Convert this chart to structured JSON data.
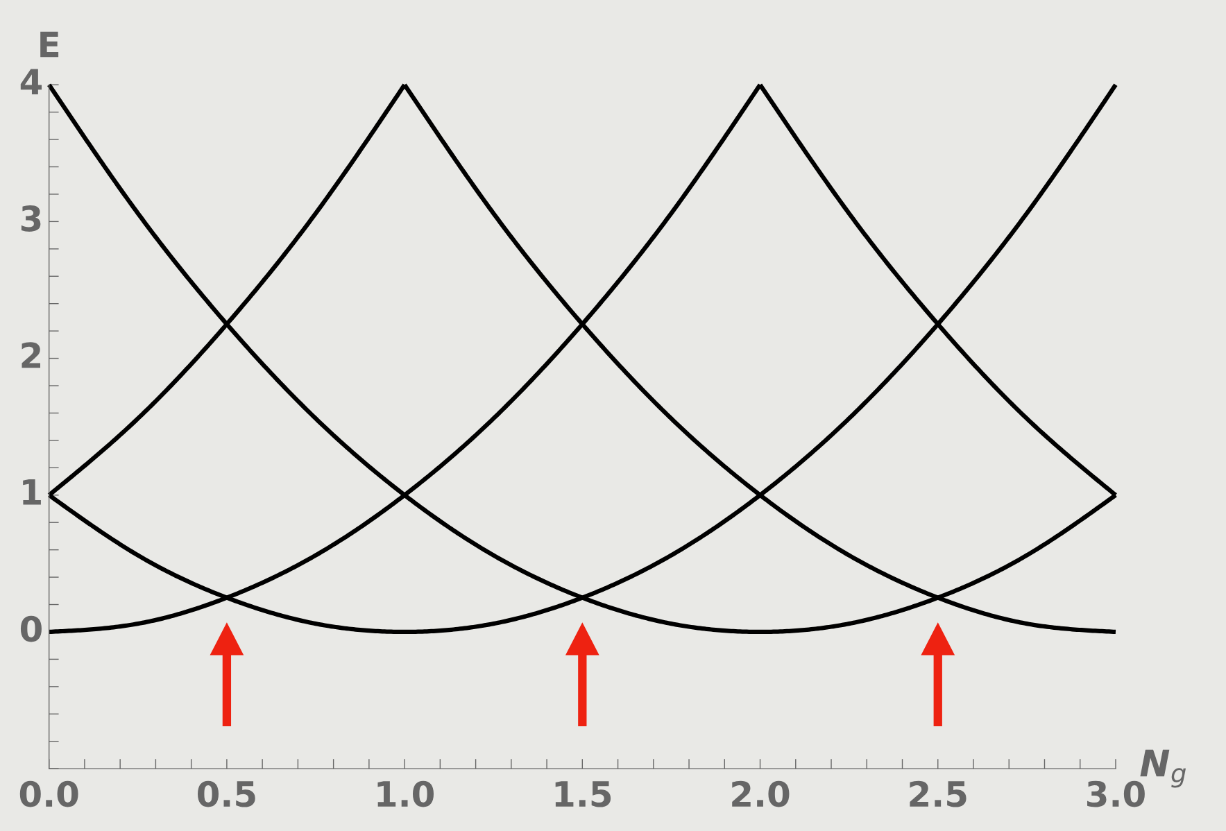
{
  "chart_data": {
    "type": "line",
    "xlabel": "N$_{g}$",
    "ylabel": "E",
    "series": [
      {
        "color": "#000000",
        "x": [
          0,
          0.25,
          0.5,
          0.75,
          1,
          1.25,
          1.5,
          1.75,
          2
        ],
        "values": [
          0,
          0.06,
          0.25,
          0.56,
          1,
          1.56,
          2.25,
          3.06,
          4
        ]
      },
      {
        "color": "#000000",
        "x": [
          0,
          0.25,
          0.5,
          0.75,
          1,
          1.25,
          1.5,
          1.75,
          2,
          2.25,
          2.5,
          2.75,
          3
        ],
        "values": [
          1,
          0.56,
          0.25,
          0.06,
          0,
          0.06,
          0.25,
          0.56,
          1,
          1.56,
          2.25,
          3.06,
          4
        ]
      },
      {
        "color": "#000000",
        "x": [
          0,
          0.25,
          0.5,
          0.75,
          1,
          1.25,
          1.5,
          1.75,
          2,
          2.25,
          2.5,
          2.75,
          3
        ],
        "values": [
          4,
          3.06,
          2.25,
          1.56,
          1,
          0.56,
          0.25,
          0.06,
          0,
          0.06,
          0.25,
          0.56,
          1
        ]
      },
      {
        "color": "#000000",
        "x": [
          1,
          1.25,
          1.5,
          1.75,
          2,
          2.25,
          2.5,
          2.75,
          3
        ],
        "values": [
          4,
          3.06,
          2.25,
          1.56,
          1,
          0.56,
          0.25,
          0.06,
          0
        ]
      },
      {
        "color": "#000000",
        "x": [
          0,
          0.25,
          0.5,
          0.75,
          1
        ],
        "values": [
          1,
          1.56,
          2.25,
          3.06,
          4
        ]
      },
      {
        "color": "#000000",
        "x": [
          2,
          2.25,
          2.5,
          2.75,
          3
        ],
        "values": [
          4,
          3.06,
          2.25,
          1.56,
          1
        ]
      }
    ],
    "xlim": [
      0,
      3
    ],
    "xticks": [
      {
        "value": 0,
        "label": "0.0"
      },
      0.5,
      {
        "value": 1,
        "label": "1.0"
      },
      1.5,
      {
        "value": 2,
        "label": "2.0"
      },
      2.5,
      {
        "value": 3,
        "label": "3.0"
      }
    ],
    "ylim": [
      -1,
      4
    ],
    "yticks": [
      0,
      1,
      2,
      3,
      4
    ],
    "grid": false,
    "legend": false,
    "marker": "none",
    "line_style": "solid"
  }
}
